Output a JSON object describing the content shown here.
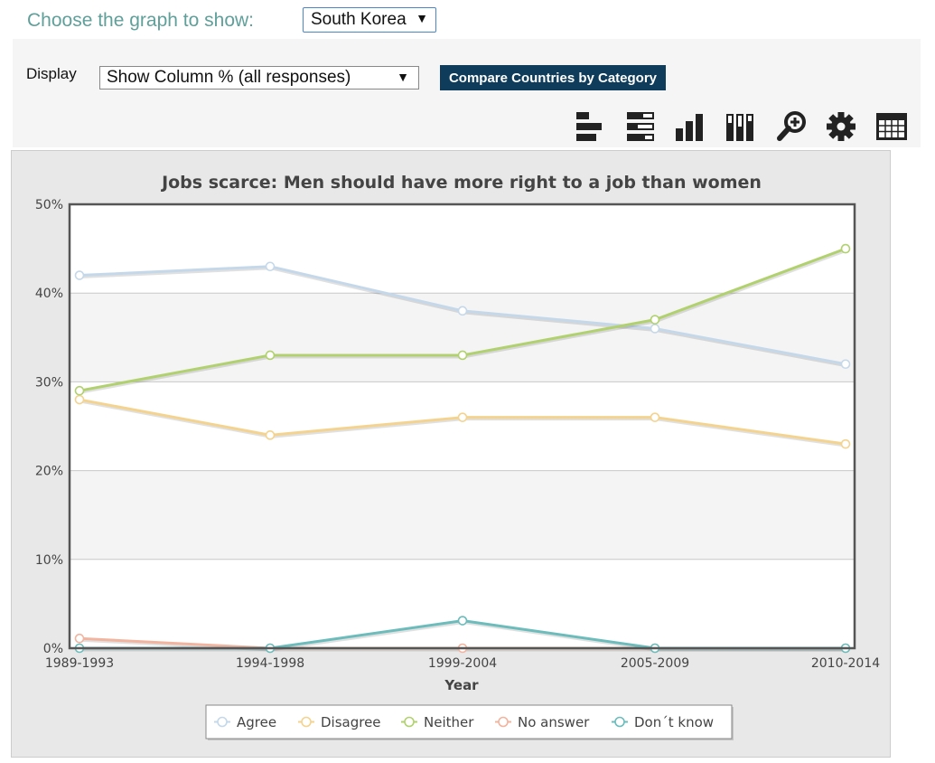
{
  "header": {
    "choose_label": "Choose the graph to show:",
    "country_selected": "South Korea",
    "display_label": "Display",
    "display_selected": "Show Column % (all responses)",
    "compare_button": "Compare Countries by Category"
  },
  "toolbar": {
    "icons": [
      "bar-horizontal-icon",
      "bar-horizontal-stacked-icon",
      "bar-vertical-icon",
      "bar-vertical-stacked-icon",
      "zoom-in-icon",
      "settings-gear-icon",
      "table-view-icon"
    ]
  },
  "chart_data": {
    "type": "line",
    "title": "Jobs scarce: Men should have more right to a job than women",
    "xlabel": "Year",
    "ylabel": "",
    "categories": [
      "1989-1993",
      "1994-1998",
      "1999-2004",
      "2005-2009",
      "2010-2014"
    ],
    "ylim": [
      0,
      50
    ],
    "yticks": [
      "0%",
      "10%",
      "20%",
      "30%",
      "40%",
      "50%"
    ],
    "grid": true,
    "legend_position": "bottom",
    "series": [
      {
        "name": "Agree",
        "color": "#c5d8ea",
        "values": [
          42,
          43,
          38,
          36,
          32
        ]
      },
      {
        "name": "Disagree",
        "color": "#f4d38f",
        "values": [
          28,
          24,
          26,
          26,
          23
        ]
      },
      {
        "name": "Neither",
        "color": "#b1d16f",
        "values": [
          29,
          33,
          33,
          37,
          45
        ]
      },
      {
        "name": "No answer",
        "color": "#f2b49e",
        "values": [
          1.1,
          0,
          0,
          0,
          0
        ]
      },
      {
        "name": "Don´t know",
        "color": "#6cbcbc",
        "values": [
          0,
          0,
          3.1,
          0,
          0
        ]
      }
    ]
  }
}
